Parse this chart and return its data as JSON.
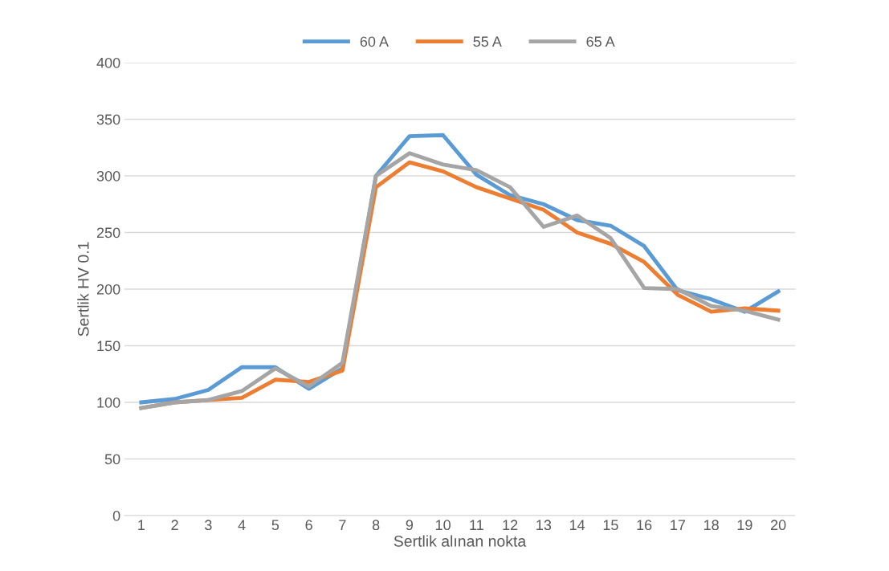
{
  "chart_data": {
    "type": "line",
    "xlabel": "Sertlik alınan nokta",
    "ylabel": "Sertlik HV 0.1",
    "categories": [
      "1",
      "2",
      "3",
      "4",
      "5",
      "6",
      "7",
      "8",
      "9",
      "10",
      "11",
      "12",
      "13",
      "14",
      "15",
      "16",
      "17",
      "18",
      "19",
      "20"
    ],
    "ylim": [
      0,
      400
    ],
    "yticks": [
      0,
      50,
      100,
      150,
      200,
      250,
      300,
      350,
      400
    ],
    "grid": "y",
    "legend": "top",
    "marker": "none",
    "line_style": "solid",
    "series": [
      {
        "name": "60 A",
        "color": "#5b9bd5",
        "values": [
          100,
          103,
          111,
          131,
          131,
          112,
          130,
          300,
          335,
          336,
          301,
          283,
          275,
          261,
          256,
          238,
          199,
          191,
          180,
          198
        ]
      },
      {
        "name": "55 A",
        "color": "#ed7d31",
        "values": [
          95,
          100,
          102,
          104,
          120,
          118,
          128,
          290,
          312,
          304,
          290,
          280,
          270,
          250,
          240,
          224,
          195,
          180,
          183,
          181
        ]
      },
      {
        "name": "65 A",
        "color": "#a5a5a5",
        "values": [
          95,
          100,
          102,
          110,
          130,
          114,
          135,
          300,
          320,
          310,
          305,
          290,
          255,
          265,
          245,
          201,
          200,
          185,
          181,
          173
        ]
      }
    ]
  }
}
